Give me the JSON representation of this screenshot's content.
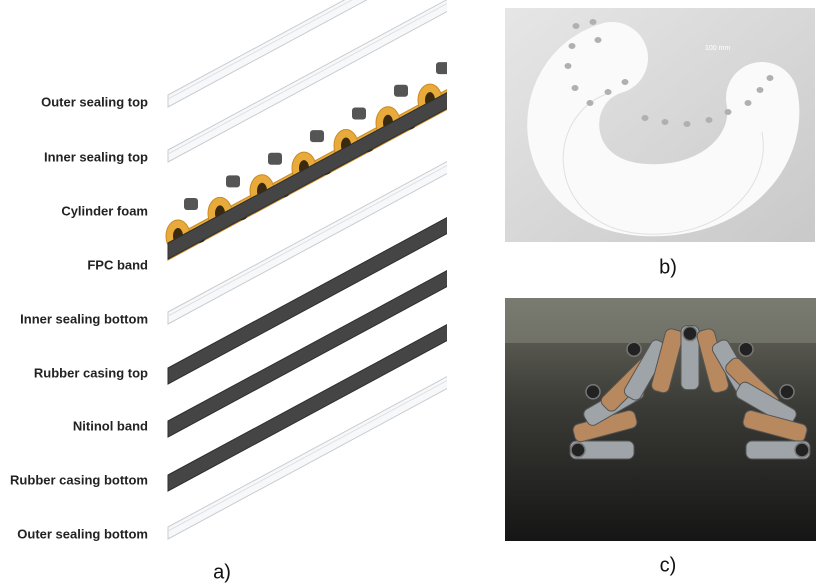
{
  "layers": [
    "Outer sealing top",
    "Inner sealing top",
    "Cylinder foam",
    "FPC band",
    "Inner sealing bottom",
    "Rubber casing top",
    "Nitinol band",
    "Rubber casing bottom",
    "Outer sealing bottom"
  ],
  "panels": [
    "a)",
    "b)",
    "c)"
  ],
  "panel_b": {
    "annotation": "100 mm"
  }
}
